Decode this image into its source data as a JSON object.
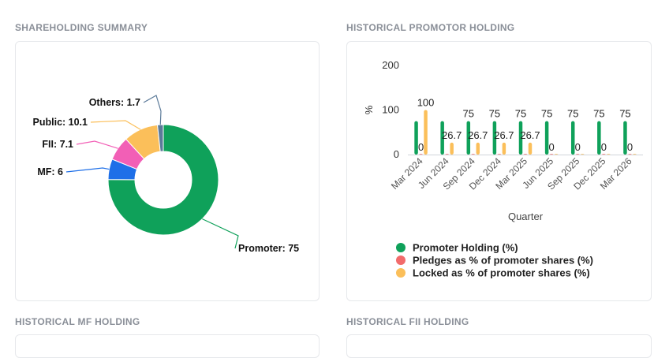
{
  "sections": {
    "shareholding_summary": "SHAREHOLDING SUMMARY",
    "historical_promotor": "HISTORICAL PROMOTOR HOLDING",
    "historical_mf": "HISTORICAL MF HOLDING",
    "historical_fii": "HISTORICAL FII HOLDING"
  },
  "chart_data": [
    {
      "type": "pie",
      "variant": "donut",
      "labels": [
        "Promoter",
        "MF",
        "FII",
        "Public",
        "Others"
      ],
      "values": [
        75,
        6,
        7.1,
        10.1,
        1.7
      ],
      "display_labels": [
        "Promoter: 75",
        "MF: 6",
        "FII: 7.1",
        "Public: 10.1",
        "Others: 1.7"
      ],
      "colors": [
        "#0fa15a",
        "#1e6fe8",
        "#f25fb6",
        "#fbbf5a",
        "#5b7a99"
      ]
    },
    {
      "type": "bar",
      "categories": [
        "Mar 2024",
        "Jun 2024",
        "Sep 2024",
        "Dec 2024",
        "Mar 2025",
        "Jun 2025",
        "Sep 2025",
        "Dec 2025",
        "Mar 2026"
      ],
      "series": [
        {
          "name": "Promoter Holding (%)",
          "color": "#0fa15a",
          "values": [
            75,
            75,
            75,
            75,
            75,
            75,
            75,
            75,
            75
          ]
        },
        {
          "name": "Pledges as % of promoter shares (%)",
          "color": "#f26b6b",
          "values": [
            0,
            0,
            0,
            0,
            0,
            0,
            0,
            0,
            0
          ]
        },
        {
          "name": "Locked as % of promoter shares (%)",
          "color": "#fbbf5a",
          "values": [
            100,
            26.7,
            26.7,
            26.7,
            26.7,
            0,
            0,
            0,
            0
          ]
        }
      ],
      "data_labels": [
        [
          "",
          "",
          "75",
          "75",
          "75",
          "75",
          "75",
          "75",
          "75"
        ],
        [
          "0",
          "",
          "",
          "",
          "",
          "0",
          "0",
          "0",
          "0"
        ],
        [
          "100",
          "26.7",
          "26.7",
          "26.7",
          "26.7",
          "",
          "",
          "",
          ""
        ]
      ],
      "yticks": [
        "0",
        "100",
        "200"
      ],
      "ylim": [
        0,
        200
      ],
      "xlabel": "Quarter",
      "ylabel": "%",
      "grid": false,
      "legend_position": "bottom"
    }
  ]
}
